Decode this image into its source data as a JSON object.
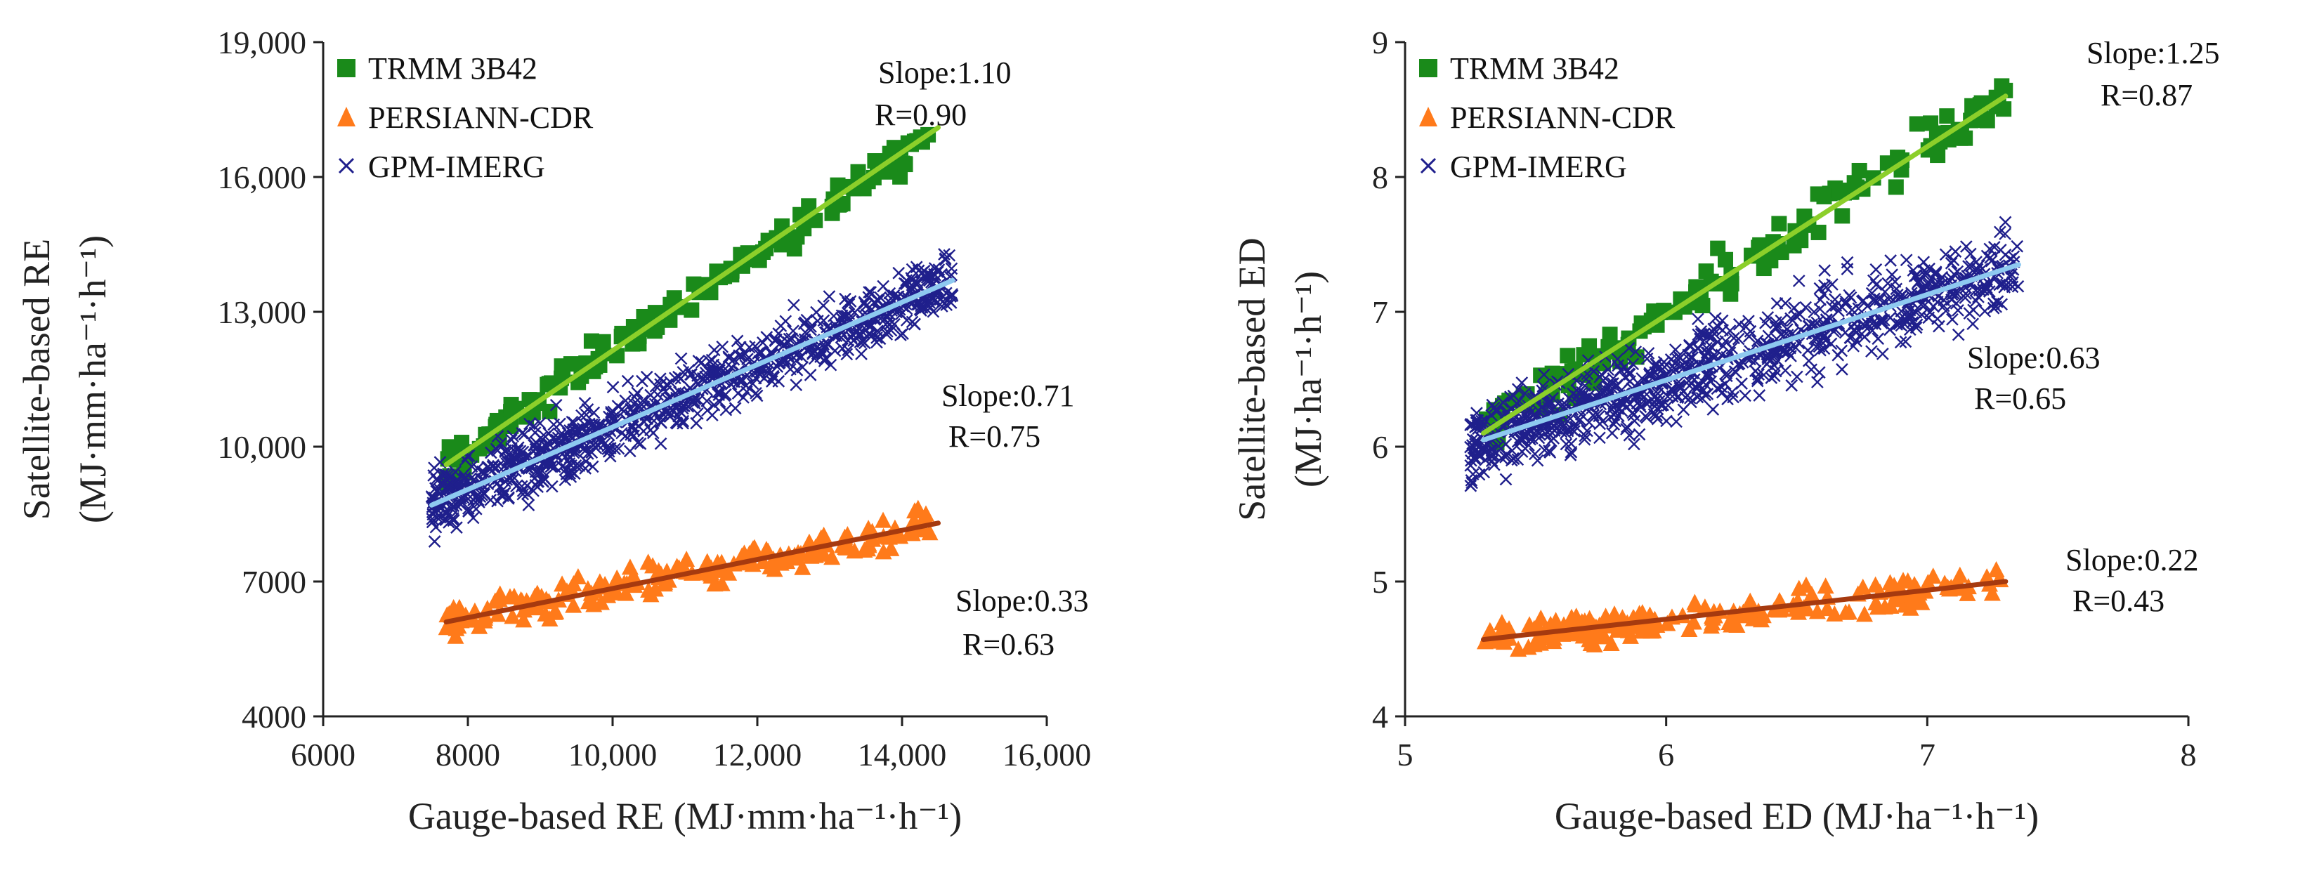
{
  "chart_data": [
    {
      "type": "scatter",
      "id": "re",
      "xlim": [
        6000,
        16000
      ],
      "ylim": [
        4000,
        19000
      ],
      "xticks": [
        6000,
        8000,
        10000,
        12000,
        14000,
        16000
      ],
      "xtick_labels": [
        "6000",
        "8000",
        "10,000",
        "12,000",
        "14,000",
        "16,000"
      ],
      "yticks": [
        4000,
        7000,
        10000,
        13000,
        16000,
        19000
      ],
      "ytick_labels": [
        "4000",
        "7000",
        "10,000",
        "13,000",
        "16,000",
        "19,000"
      ],
      "xlabel": "Gauge-based RE (MJ·mm·ha⁻¹·h⁻¹)",
      "ylabel_line1": "Satellite-based RE",
      "ylabel_line2": "(MJ·mm·ha⁻¹·h⁻¹)",
      "legend": [
        "TRMM 3B42",
        "PERSIANN-CDR",
        "GPM-IMERG"
      ],
      "series": [
        {
          "name": "TRMM 3B42",
          "marker": "square",
          "color": "#1a8a1a",
          "line_color": "#8ccf2a",
          "x_range": [
            7700,
            14400
          ],
          "line": [
            [
              7700,
              9600
            ],
            [
              14500,
              17100
            ]
          ],
          "spread": 800,
          "n": 150,
          "slope_label": "Slope:1.10",
          "r_label": "R=0.90"
        },
        {
          "name": "PERSIANN-CDR",
          "marker": "triangle",
          "color": "#ff7a1a",
          "line_color": "#a63a0f",
          "x_range": [
            7700,
            14400
          ],
          "line": [
            [
              7700,
              6100
            ],
            [
              14500,
              8300
            ]
          ],
          "spread": 700,
          "n": 200,
          "slope_label": "Slope:0.33",
          "r_label": "R=0.63"
        },
        {
          "name": "GPM-IMERG",
          "marker": "x",
          "color": "#1f1f8c",
          "line_color": "#8ec9f0",
          "x_range": [
            7500,
            14700
          ],
          "line": [
            [
              7500,
              8700
            ],
            [
              14700,
              13700
            ]
          ],
          "spread": 1400,
          "n": 900,
          "slope_label": "Slope:0.71",
          "r_label": "R=0.75"
        }
      ]
    },
    {
      "type": "scatter",
      "id": "ed",
      "xlim": [
        5,
        8
      ],
      "ylim": [
        4,
        9
      ],
      "xticks": [
        5,
        6,
        7,
        8
      ],
      "xtick_labels": [
        "5",
        "6",
        "7",
        "8"
      ],
      "yticks": [
        4,
        5,
        6,
        7,
        8,
        9
      ],
      "ytick_labels": [
        "4",
        "5",
        "6",
        "7",
        "8",
        "9"
      ],
      "xlabel": "Gauge-based ED (MJ·ha⁻¹·h⁻¹)",
      "ylabel_line1": "Satellite-based ED",
      "ylabel_line2": "(MJ·ha⁻¹·h⁻¹)",
      "legend": [
        "TRMM 3B42",
        "PERSIANN-CDR",
        "GPM-IMERG"
      ],
      "series": [
        {
          "name": "TRMM 3B42",
          "marker": "square",
          "color": "#1a8a1a",
          "line_color": "#8ccf2a",
          "x_range": [
            5.3,
            7.3
          ],
          "line": [
            [
              5.3,
              6.1
            ],
            [
              7.3,
              8.6
            ]
          ],
          "spread": 0.35,
          "n": 150,
          "slope_label": "Slope:1.25",
          "r_label": "R=0.87"
        },
        {
          "name": "PERSIANN-CDR",
          "marker": "triangle",
          "color": "#ff7a1a",
          "line_color": "#a63a0f",
          "x_range": [
            5.3,
            7.3
          ],
          "line": [
            [
              5.3,
              4.57
            ],
            [
              7.3,
              5.0
            ]
          ],
          "spread": 0.22,
          "n": 200,
          "slope_label": "Slope:0.22",
          "r_label": "R=0.43"
        },
        {
          "name": "GPM-IMERG",
          "marker": "x",
          "color": "#1f1f8c",
          "line_color": "#8ec9f0",
          "x_range": [
            5.25,
            7.35
          ],
          "line": [
            [
              5.3,
              6.05
            ],
            [
              7.35,
              7.35
            ]
          ],
          "spread": 0.6,
          "n": 900,
          "slope_label": "Slope:0.63",
          "r_label": "R=0.65"
        }
      ]
    }
  ]
}
